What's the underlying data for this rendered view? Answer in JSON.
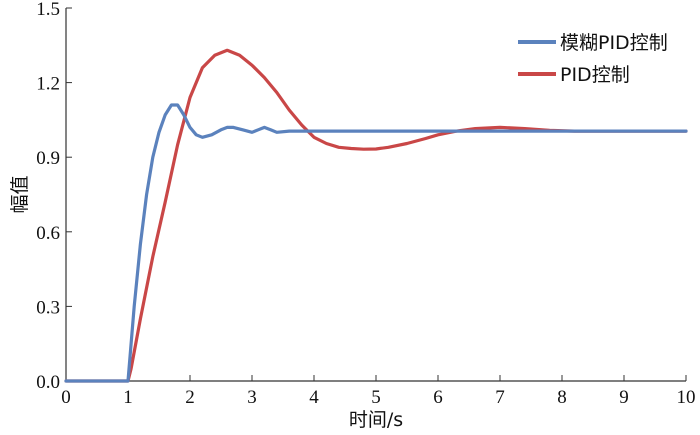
{
  "chart_data": {
    "type": "line",
    "title": "",
    "xlabel": "时间/s",
    "ylabel": "幅值",
    "xlim": [
      0,
      10
    ],
    "ylim": [
      0,
      1.5
    ],
    "x_ticks": [
      "0",
      "1",
      "2",
      "3",
      "4",
      "5",
      "6",
      "7",
      "8",
      "9",
      "10"
    ],
    "y_ticks": [
      "0.0",
      "0.3",
      "0.6",
      "0.9",
      "1.2",
      "1.5"
    ],
    "grid": false,
    "legend_position": "top-right",
    "series": [
      {
        "name": "模糊PID控制",
        "color": "#5b82bd",
        "x": [
          0,
          0.95,
          1.0,
          1.1,
          1.2,
          1.3,
          1.4,
          1.5,
          1.6,
          1.7,
          1.8,
          1.9,
          2.0,
          2.1,
          2.2,
          2.35,
          2.5,
          2.6,
          2.7,
          2.85,
          3.0,
          3.1,
          3.2,
          3.3,
          3.4,
          3.6,
          4.0,
          5.0,
          6.0,
          7.0,
          8.0,
          9.0,
          10.0
        ],
        "y": [
          0.0,
          0.0,
          0.0,
          0.3,
          0.55,
          0.75,
          0.9,
          1.0,
          1.07,
          1.11,
          1.11,
          1.07,
          1.02,
          0.99,
          0.98,
          0.99,
          1.01,
          1.02,
          1.02,
          1.01,
          1.0,
          1.01,
          1.02,
          1.01,
          1.0,
          1.005,
          1.005,
          1.005,
          1.005,
          1.005,
          1.005,
          1.005,
          1.005
        ]
      },
      {
        "name": "PID控制",
        "color": "#c94747",
        "x": [
          0,
          1.0,
          1.05,
          1.2,
          1.4,
          1.6,
          1.8,
          2.0,
          2.2,
          2.4,
          2.6,
          2.8,
          3.0,
          3.2,
          3.4,
          3.6,
          3.8,
          4.0,
          4.2,
          4.4,
          4.6,
          4.8,
          5.0,
          5.2,
          5.5,
          5.8,
          6.0,
          6.3,
          6.6,
          7.0,
          7.4,
          7.8,
          8.2,
          9.0,
          10.0
        ],
        "y": [
          0.0,
          0.0,
          0.05,
          0.25,
          0.5,
          0.72,
          0.95,
          1.14,
          1.26,
          1.31,
          1.33,
          1.31,
          1.27,
          1.22,
          1.16,
          1.09,
          1.03,
          0.98,
          0.955,
          0.94,
          0.935,
          0.932,
          0.933,
          0.94,
          0.955,
          0.975,
          0.99,
          1.005,
          1.015,
          1.02,
          1.015,
          1.008,
          1.005,
          1.005,
          1.005
        ]
      }
    ]
  }
}
